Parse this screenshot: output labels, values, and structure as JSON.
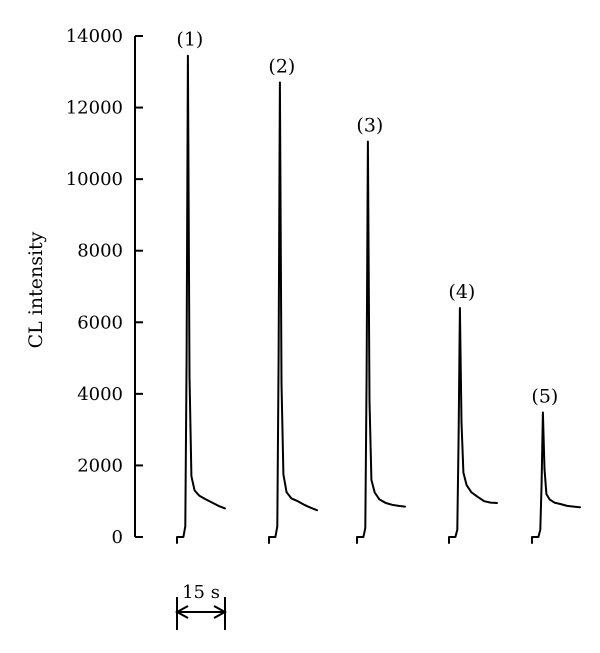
{
  "chart_data": {
    "type": "line",
    "title": "",
    "xlabel": "",
    "ylabel": "CL intensity",
    "ylim": [
      0,
      14000
    ],
    "yticks": [
      0,
      2000,
      4000,
      6000,
      8000,
      10000,
      12000,
      14000
    ],
    "grid": false,
    "time_scale_bar": {
      "label": "15 s",
      "duration_s": 15
    },
    "series": [
      {
        "name": "(1)",
        "t": [
          0,
          2,
          2.6,
          3.0,
          3.4,
          3.9,
          4.5,
          5.5,
          7,
          9,
          11,
          13,
          15
        ],
        "y": [
          0,
          0,
          300,
          5000,
          13450,
          4500,
          1700,
          1300,
          1150,
          1050,
          960,
          870,
          800
        ]
      },
      {
        "name": "(2)",
        "t": [
          0,
          2,
          2.6,
          3.0,
          3.4,
          3.9,
          4.5,
          5.5,
          7,
          9,
          11,
          13,
          15
        ],
        "y": [
          0,
          0,
          300,
          5000,
          12700,
          4300,
          1750,
          1250,
          1080,
          1000,
          900,
          820,
          750
        ]
      },
      {
        "name": "(3)",
        "t": [
          0,
          2,
          2.6,
          3.0,
          3.4,
          3.9,
          4.5,
          5.5,
          7,
          9,
          11,
          13,
          15
        ],
        "y": [
          0,
          0,
          250,
          4500,
          11050,
          3800,
          1600,
          1250,
          1050,
          950,
          900,
          870,
          850
        ]
      },
      {
        "name": "(4)",
        "t": [
          0,
          2,
          2.6,
          3.0,
          3.4,
          3.9,
          4.5,
          5.5,
          7,
          9,
          11,
          13,
          15
        ],
        "y": [
          0,
          0,
          200,
          2800,
          6400,
          3200,
          1800,
          1450,
          1250,
          1120,
          1000,
          960,
          950
        ]
      },
      {
        "name": "(5)",
        "t": [
          0,
          2,
          2.6,
          3.0,
          3.4,
          3.9,
          4.5,
          5.5,
          7,
          9,
          11,
          13,
          15
        ],
        "y": [
          0,
          0,
          200,
          1500,
          3480,
          1900,
          1200,
          1050,
          960,
          920,
          870,
          850,
          830
        ]
      }
    ]
  }
}
